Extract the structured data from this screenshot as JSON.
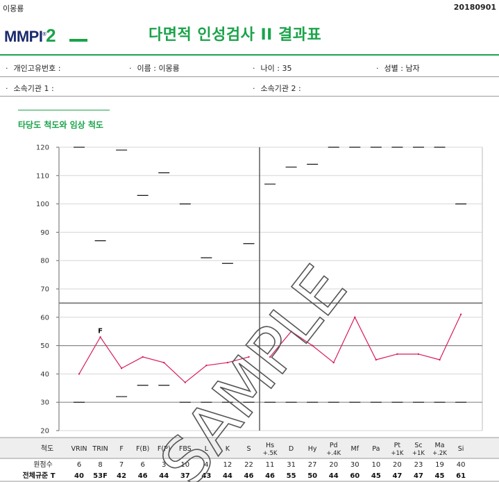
{
  "header": {
    "name": "이몽룡",
    "date": "20180901",
    "logo_text": "MMPI",
    "logo_mark": "®",
    "logo_number": "2",
    "report_title": "다면적 인성검사 II 결과표"
  },
  "info": {
    "id_label": "개인고유번호 :",
    "name_label": "이름 : 이몽룡",
    "age_label": "나이 : 35",
    "gender_label": "성별 : 남자",
    "org1_label": "소속기관 1 :",
    "org2_label": "소속기관 2 :"
  },
  "section": {
    "title": "타당도 척도와 임상 척도"
  },
  "watermark": "SAMPLE",
  "table": {
    "row_labels": [
      "척도",
      "원점수",
      "전체규준 T"
    ]
  },
  "chart_data": {
    "type": "line",
    "ylim": [
      20,
      120
    ],
    "yticks": [
      20,
      30,
      40,
      50,
      60,
      70,
      80,
      90,
      100,
      110,
      120
    ],
    "threshold_lines": [
      65,
      50,
      30
    ],
    "categories": [
      "VRIN",
      "TRIN",
      "F",
      "F(B)",
      "F(P)",
      "FBS",
      "L",
      "K",
      "S",
      "Hs +.5K",
      "D",
      "Hy",
      "Pd +.4K",
      "Mf",
      "Pa",
      "Pt +1K",
      "Sc +1K",
      "Ma +.2K",
      "Si"
    ],
    "validity_scales": [
      "VRIN",
      "TRIN",
      "F",
      "F(B)",
      "F(P)",
      "FBS",
      "L",
      "K",
      "S"
    ],
    "clinical_scales": [
      "Hs +.5K",
      "D",
      "Hy",
      "Pd +.4K",
      "Mf",
      "Pa",
      "Pt +1K",
      "Sc +1K",
      "Ma +.2K",
      "Si"
    ],
    "raw_scores": [
      "6",
      "8",
      "7",
      "6",
      "3",
      "10",
      "4",
      "12",
      "22",
      "11",
      "31",
      "27",
      "20",
      "30",
      "10",
      "20",
      "23",
      "19",
      "40"
    ],
    "t_score_labels": [
      "40",
      "53F",
      "42",
      "46",
      "44",
      "37",
      "43",
      "44",
      "46",
      "46",
      "55",
      "50",
      "44",
      "60",
      "45",
      "47",
      "47",
      "45",
      "61"
    ],
    "t_scores": [
      40,
      53,
      42,
      46,
      44,
      37,
      43,
      44,
      46,
      46,
      55,
      50,
      44,
      60,
      45,
      47,
      47,
      45,
      61
    ],
    "upper_limits": [
      120,
      87,
      119,
      103,
      111,
      100,
      81,
      79,
      86,
      107,
      113,
      114,
      120,
      120,
      120,
      120,
      120,
      120,
      100
    ],
    "lower_limits": [
      30,
      null,
      32,
      36,
      36,
      30,
      30,
      30,
      30,
      30,
      30,
      30,
      30,
      30,
      30,
      30,
      30,
      30,
      30
    ],
    "point_annotations": [
      {
        "category": "TRIN",
        "text": "F"
      }
    ],
    "line_color": "#d81b5a"
  }
}
